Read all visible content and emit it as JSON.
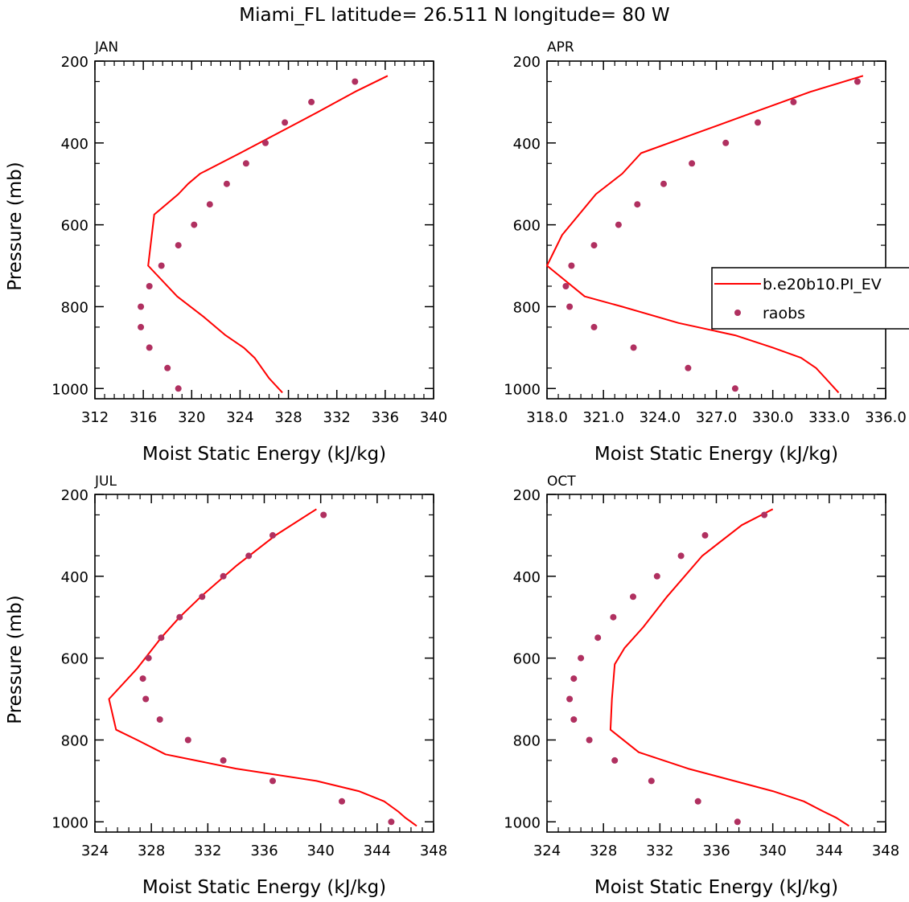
{
  "figure": {
    "title": "Miami_FL  latitude= 26.511 N longitude= 80 W",
    "colors": {
      "model": "#ff0000",
      "obs": "#b03060",
      "axes": "#000000"
    },
    "legend": {
      "placement": "right, inside APR panel",
      "entries": [
        "b.e20b10.PI_EV",
        "raobs"
      ]
    }
  },
  "chart_data": [
    {
      "type": "line+scatter",
      "panel": "JAN",
      "xlabel": "Moist Static Energy (kJ/kg)",
      "ylabel": "Pressure (mb)",
      "xlim": [
        312,
        340
      ],
      "ylim": [
        1025,
        200
      ],
      "xticks": [
        312,
        316,
        320,
        324,
        328,
        332,
        336,
        340
      ],
      "xticklabels": [
        "312",
        "316",
        "320",
        "324",
        "328",
        "332",
        "336",
        "340"
      ],
      "yticks": [
        200,
        400,
        600,
        800,
        1000
      ],
      "yticklabels": [
        "200",
        "400",
        "600",
        "800",
        "1000"
      ],
      "series": [
        {
          "name": "b.e20b10.PI_EV",
          "kind": "line",
          "x": [
            336.2,
            333.5,
            330.4,
            327.2,
            324.0,
            320.7,
            319.7,
            318.9,
            316.9,
            316.4,
            318.8,
            321.0,
            322.8,
            324.3,
            325.2,
            325.8,
            326.4,
            327.5
          ],
          "y": [
            236,
            275,
            325,
            375,
            425,
            475,
            500,
            525,
            575,
            700,
            775,
            825,
            870,
            900,
            925,
            950,
            975,
            1010
          ]
        },
        {
          "name": "raobs",
          "kind": "scatter",
          "x": [
            333.5,
            329.9,
            327.7,
            326.1,
            324.5,
            322.9,
            321.5,
            320.2,
            318.9,
            317.5,
            316.5,
            315.8,
            315.8,
            316.5,
            318.0,
            318.9
          ],
          "y": [
            250,
            300,
            350,
            400,
            450,
            500,
            550,
            600,
            650,
            700,
            750,
            800,
            850,
            900,
            950,
            1000
          ]
        }
      ]
    },
    {
      "type": "line+scatter",
      "panel": "APR",
      "xlabel": "Moist Static Energy (kJ/kg)",
      "ylabel": "",
      "xlim": [
        318,
        336
      ],
      "ylim": [
        1025,
        200
      ],
      "xticks": [
        318,
        321,
        324,
        327,
        330,
        333,
        336
      ],
      "xticklabels": [
        "318.0",
        "321.0",
        "324.0",
        "327.0",
        "330.0",
        "333.0",
        "336.0"
      ],
      "yticks": [
        200,
        400,
        600,
        800,
        1000
      ],
      "yticklabels": [
        "200",
        "400",
        "600",
        "800",
        "1000"
      ],
      "series": [
        {
          "name": "b.e20b10.PI_EV",
          "kind": "line",
          "x": [
            334.8,
            332.0,
            329.0,
            326.0,
            323.0,
            322.0,
            320.6,
            318.8,
            318.0,
            320.0,
            322.0,
            325.0,
            328.0,
            330.0,
            331.5,
            332.3,
            332.8,
            333.5
          ],
          "y": [
            236,
            275,
            325,
            375,
            425,
            475,
            525,
            625,
            700,
            775,
            800,
            840,
            870,
            900,
            925,
            950,
            975,
            1010
          ]
        },
        {
          "name": "raobs",
          "kind": "scatter",
          "x": [
            334.5,
            331.1,
            329.2,
            327.5,
            325.7,
            324.2,
            322.8,
            321.8,
            320.5,
            319.3,
            319.0,
            319.2,
            320.5,
            322.6,
            325.5,
            328.0
          ],
          "y": [
            250,
            300,
            350,
            400,
            450,
            500,
            550,
            600,
            650,
            700,
            750,
            800,
            850,
            900,
            950,
            1000
          ]
        }
      ]
    },
    {
      "type": "line+scatter",
      "panel": "JUL",
      "xlabel": "Moist Static Energy (kJ/kg)",
      "ylabel": "Pressure (mb)",
      "xlim": [
        324,
        348
      ],
      "ylim": [
        1025,
        200
      ],
      "xticks": [
        324,
        328,
        332,
        336,
        340,
        344,
        348
      ],
      "xticklabels": [
        "324",
        "328",
        "332",
        "336",
        "340",
        "344",
        "348"
      ],
      "yticks": [
        200,
        400,
        600,
        800,
        1000
      ],
      "yticklabels": [
        "200",
        "400",
        "600",
        "800",
        "1000"
      ],
      "series": [
        {
          "name": "b.e20b10.PI_EV",
          "kind": "line",
          "x": [
            339.7,
            336.8,
            334.0,
            331.5,
            330.0,
            328.7,
            327.0,
            325.0,
            325.5,
            327.0,
            329.0,
            334.0,
            339.7,
            342.7,
            344.5,
            345.5,
            346.0,
            346.8
          ],
          "y": [
            236,
            300,
            375,
            450,
            500,
            550,
            625,
            700,
            775,
            800,
            835,
            870,
            900,
            925,
            950,
            975,
            990,
            1010
          ]
        },
        {
          "name": "raobs",
          "kind": "scatter",
          "x": [
            340.2,
            336.6,
            334.9,
            333.1,
            331.6,
            330.0,
            328.7,
            327.8,
            327.4,
            327.6,
            328.6,
            330.6,
            333.1,
            336.6,
            341.5,
            345.0
          ],
          "y": [
            250,
            300,
            350,
            400,
            450,
            500,
            550,
            600,
            650,
            700,
            750,
            800,
            850,
            900,
            950,
            1000
          ]
        }
      ]
    },
    {
      "type": "line+scatter",
      "panel": "OCT",
      "xlabel": "Moist Static Energy (kJ/kg)",
      "ylabel": "",
      "xlim": [
        324,
        348
      ],
      "ylim": [
        1025,
        200
      ],
      "xticks": [
        324,
        328,
        332,
        336,
        340,
        344,
        348
      ],
      "xticklabels": [
        "324",
        "328",
        "332",
        "336",
        "340",
        "344",
        "348"
      ],
      "yticks": [
        200,
        400,
        600,
        800,
        1000
      ],
      "yticklabels": [
        "200",
        "400",
        "600",
        "800",
        "1000"
      ],
      "series": [
        {
          "name": "b.e20b10.PI_EV",
          "kind": "line",
          "x": [
            340.0,
            337.8,
            335.0,
            332.5,
            330.8,
            329.5,
            328.8,
            328.6,
            328.5,
            330.5,
            334.0,
            340.0,
            342.2,
            343.6,
            344.5,
            345.4
          ],
          "y": [
            236,
            275,
            350,
            450,
            525,
            575,
            615,
            700,
            775,
            830,
            870,
            925,
            950,
            975,
            990,
            1010
          ]
        },
        {
          "name": "raobs",
          "kind": "scatter",
          "x": [
            339.4,
            335.2,
            333.5,
            331.8,
            330.1,
            328.7,
            327.6,
            326.4,
            325.9,
            325.6,
            325.9,
            327.0,
            328.8,
            331.4,
            334.7,
            337.5
          ],
          "y": [
            250,
            300,
            350,
            400,
            450,
            500,
            550,
            600,
            650,
            700,
            750,
            800,
            850,
            900,
            950,
            1000
          ]
        }
      ]
    }
  ]
}
